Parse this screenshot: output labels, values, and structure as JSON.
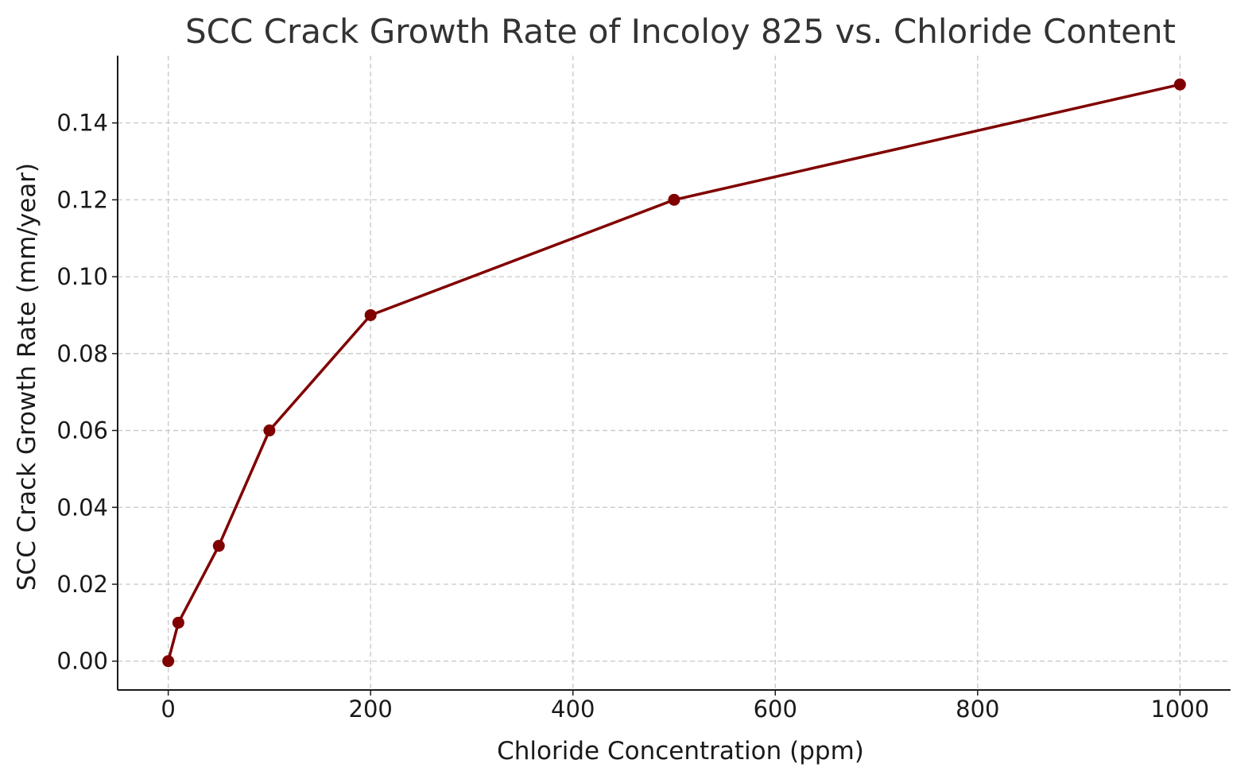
{
  "chart_data": {
    "type": "line",
    "title": "SCC Crack Growth Rate of Incoloy 825 vs. Chloride Content",
    "xlabel": "Chloride Concentration (ppm)",
    "ylabel": "SCC Crack Growth Rate (mm/year)",
    "xlim": [
      -50,
      1050
    ],
    "ylim": [
      -0.0075,
      0.1575
    ],
    "xticks": [
      0,
      200,
      400,
      600,
      800,
      1000
    ],
    "xtick_labels": [
      "0",
      "200",
      "400",
      "600",
      "800",
      "1000"
    ],
    "yticks": [
      0.0,
      0.02,
      0.04,
      0.06,
      0.08,
      0.1,
      0.12,
      0.14
    ],
    "ytick_labels": [
      "0.00",
      "0.02",
      "0.04",
      "0.06",
      "0.08",
      "0.10",
      "0.12",
      "0.14"
    ],
    "grid": true,
    "legend": "none",
    "series": [
      {
        "x": [
          0,
          10,
          50,
          100,
          200,
          500,
          1000
        ],
        "y": [
          0.0,
          0.01,
          0.03,
          0.06,
          0.09,
          0.12,
          0.15
        ],
        "color": "#800000",
        "marker": "circle"
      }
    ]
  }
}
